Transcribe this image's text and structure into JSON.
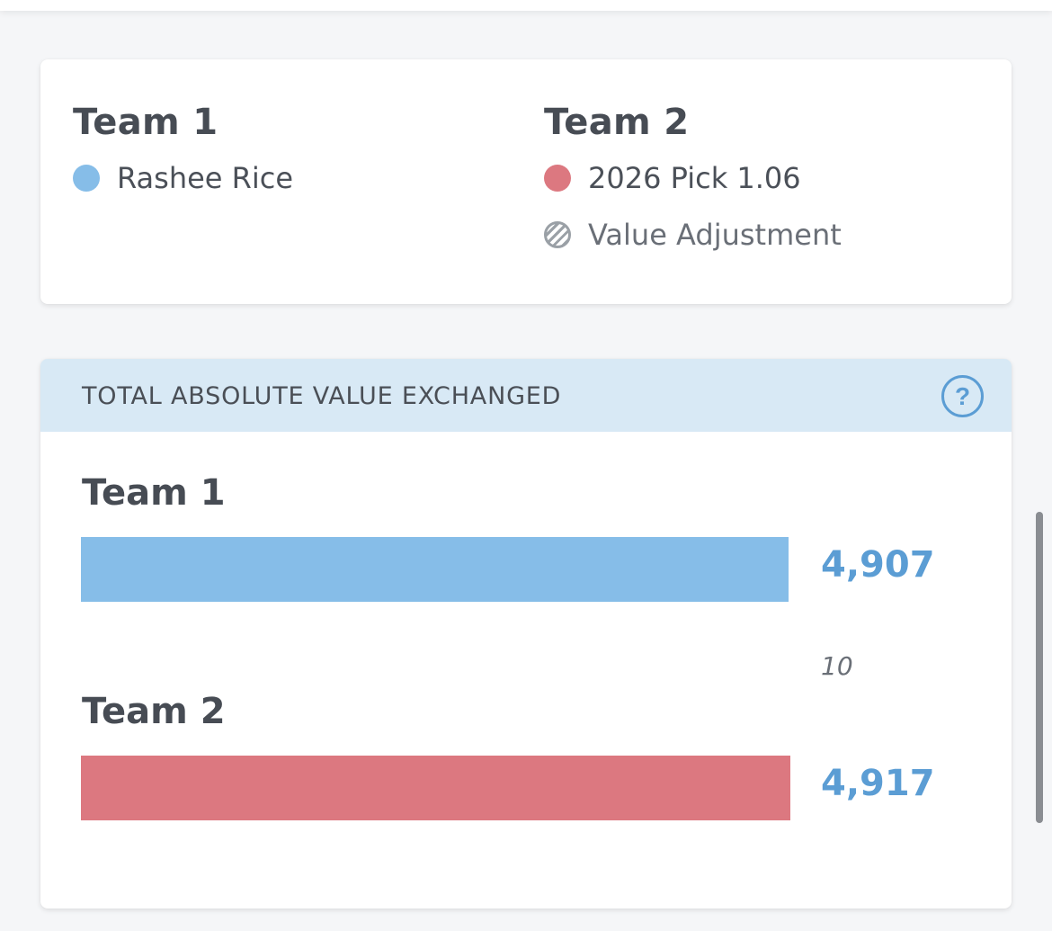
{
  "trade": {
    "team1": {
      "name": "Team 1",
      "color": "#86bde8",
      "assets": [
        {
          "label": "Rashee Rice",
          "type": "player"
        }
      ]
    },
    "team2": {
      "name": "Team 2",
      "color": "#dc7880",
      "assets": [
        {
          "label": "2026 Pick 1.06",
          "type": "pick"
        },
        {
          "label": "Value Adjustment",
          "type": "adjustment",
          "icon": "hatched-circle-icon"
        }
      ]
    }
  },
  "value_exchanged": {
    "title": "TOTAL ABSOLUTE VALUE EXCHANGED",
    "help_icon": "question-circle-icon",
    "help_symbol": "?",
    "value_color": "#5b9dd4",
    "difference": "10",
    "bars": [
      {
        "team": "Team 1",
        "value": 4907,
        "display": "4,907",
        "color": "#86bde8"
      },
      {
        "team": "Team 2",
        "value": 4917,
        "display": "4,917",
        "color": "#dc7880"
      }
    ]
  }
}
